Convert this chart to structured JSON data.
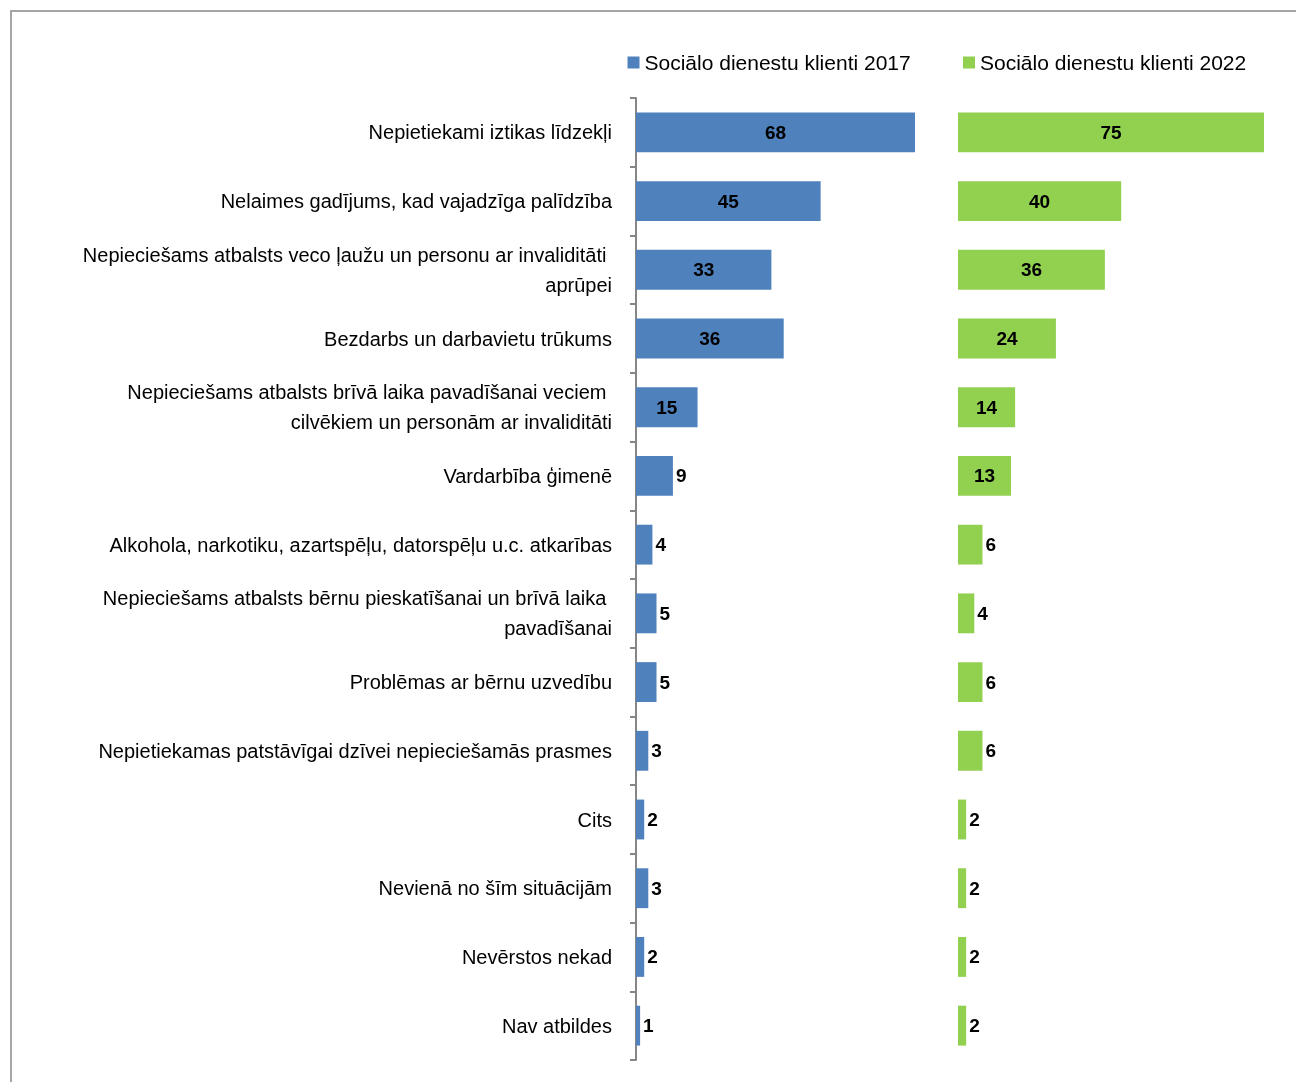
{
  "chart_data": [
    {
      "type": "bar",
      "orientation": "horizontal",
      "categories": [
        "Nepietiekami iztikas līdzekļi",
        "Nelaimes gadījums, kad vajadzīga palīdzība",
        "Nepieciešams atbalsts veco ļaužu un personu ar invaliditāti aprūpei",
        "Bezdarbs un darbavietu trūkums",
        "Nepieciešams atbalsts brīvā laika pavadīšanai veciem cilvēkiem un personām ar invaliditāti",
        "Vardarbība ģimenē",
        "Alkohola, narkotiku, azartspēļu, datorspēļu u.c. atkarības",
        "Nepieciešams atbalsts bērnu pieskatīšanai un brīvā laika pavadīšanai",
        "Problēmas ar bērnu uzvedību",
        "Nepietiekamas patstāvīgai dzīvei nepieciešamās prasmes",
        "Cits",
        "Nevienā no šīm situācijām",
        "Nevērstos nekad",
        "Nav atbildes"
      ],
      "series": [
        {
          "name": "Sociālo dienestu klienti 2017",
          "color": "#4f81bd",
          "values": [
            68,
            45,
            33,
            36,
            15,
            9,
            4,
            5,
            5,
            3,
            2,
            3,
            2,
            1
          ]
        }
      ],
      "data_labels": true,
      "legend": "top",
      "tick_labels": "y"
    },
    {
      "type": "bar",
      "orientation": "horizontal",
      "categories": [
        null,
        null,
        null,
        null,
        null,
        null,
        null,
        null,
        null,
        null,
        null,
        null,
        null,
        null
      ],
      "series": [
        {
          "name": "Sociālo dienestu klienti 2022",
          "color": "#92d050",
          "values": [
            75,
            40,
            36,
            24,
            14,
            13,
            6,
            4,
            6,
            6,
            2,
            2,
            2,
            2
          ]
        }
      ],
      "data_labels": true,
      "legend": "top",
      "tick_labels": false
    }
  ]
}
